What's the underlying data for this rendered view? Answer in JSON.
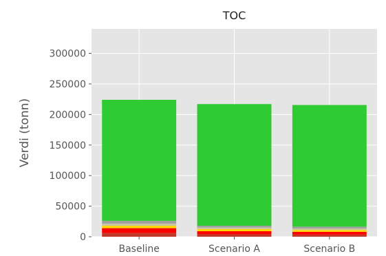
{
  "chart_data": {
    "type": "bar",
    "stacked": true,
    "title": "TOC",
    "xlabel": "",
    "ylabel": "Verdi (tonn)",
    "ylim": [
      0,
      340000
    ],
    "yticks": [
      0,
      50000,
      100000,
      150000,
      200000,
      250000,
      300000
    ],
    "grid": true,
    "background": "#e5e5e5",
    "categories": [
      "Baseline",
      "Scenario A",
      "Scenario B"
    ],
    "series": [
      {
        "color": "#c0392b",
        "values": [
          6000,
          4000,
          3500
        ]
      },
      {
        "color": "#ff0000",
        "values": [
          8000,
          5000,
          4500
        ]
      },
      {
        "color": "#ffd700",
        "values": [
          4000,
          3500,
          3000
        ]
      },
      {
        "color": "#c8c8a0",
        "values": [
          3500,
          2500,
          2500
        ]
      },
      {
        "color": "#a0a0a0",
        "values": [
          4500,
          3000,
          3000
        ]
      },
      {
        "color": "#2ecc32",
        "values": [
          198000,
          199000,
          199000
        ]
      }
    ]
  }
}
